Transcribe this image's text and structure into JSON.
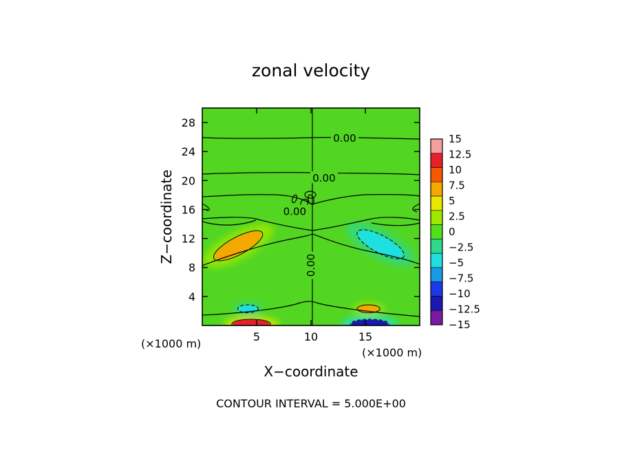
{
  "chart_data": {
    "type": "heatmap",
    "title": "zonal velocity",
    "xlabel": "X−coordinate",
    "ylabel": "Z−coordinate",
    "x_unit_left": "(×1000 m)",
    "x_unit_right": "(×1000 m)",
    "xlim": [
      0,
      20
    ],
    "ylim": [
      0,
      30
    ],
    "x_ticks": [
      5,
      10,
      15
    ],
    "y_ticks": [
      4,
      8,
      12,
      16,
      20,
      24,
      28
    ],
    "footer": "CONTOUR INTERVAL = 5.000E+00",
    "colorbar": {
      "levels": [
        15,
        12.5,
        10,
        7.5,
        5,
        2.5,
        0,
        -2.5,
        -5,
        -7.5,
        -10,
        -12.5,
        -15
      ],
      "level_labels": [
        "15",
        "12.5",
        "10",
        "7.5",
        "5",
        "2.5",
        "0",
        "−2.5",
        "−5",
        "−7.5",
        "−10",
        "−12.5",
        "−15"
      ],
      "colors": [
        "#f4a0a0",
        "#e8202a",
        "#f65a00",
        "#f5a800",
        "#e8e800",
        "#a0e800",
        "#52e01a",
        "#2fd88a",
        "#1ee0e0",
        "#1a9ae6",
        "#1a3ae8",
        "#1a18b0",
        "#7a1aa0"
      ]
    },
    "background_color": "#52d622",
    "contour_labels": [
      {
        "text": "0.00",
        "x": 13.1,
        "y": 25.9,
        "rotate": 0
      },
      {
        "text": "0.00",
        "x": 11.2,
        "y": 20.4,
        "rotate": 0
      },
      {
        "text": "0.00",
        "x": 8.5,
        "y": 15.8,
        "rotate": 0
      },
      {
        "text": "0.00",
        "x": 0,
        "y": 8.3,
        "rotate": -90
      }
    ],
    "features": [
      {
        "label": "positive jet",
        "cx": 3.3,
        "cy": 11.0,
        "rx": 2.4,
        "ry": 1.1,
        "rotate": -28,
        "value": 7.5
      },
      {
        "label": "negative jet",
        "cx": 16.4,
        "cy": 11.2,
        "rx": 2.3,
        "ry": 1.1,
        "rotate": 28,
        "value": -5
      },
      {
        "label": "low positive",
        "cx": 15.3,
        "cy": 2.3,
        "rx": 1.0,
        "ry": 0.5,
        "rotate": 0,
        "value": 7.5
      },
      {
        "label": "low negative",
        "cx": 4.2,
        "cy": 2.3,
        "rx": 0.9,
        "ry": 0.5,
        "rotate": 0,
        "value": -5
      },
      {
        "label": "surface positive",
        "cx": 4.5,
        "cy": 0.2,
        "rx": 1.7,
        "ry": 0.6,
        "rotate": 0,
        "value": 12.5
      },
      {
        "label": "surface negative",
        "cx": 15.4,
        "cy": 0.2,
        "rx": 1.7,
        "ry": 0.6,
        "rotate": 0,
        "value": -12.5
      }
    ]
  }
}
